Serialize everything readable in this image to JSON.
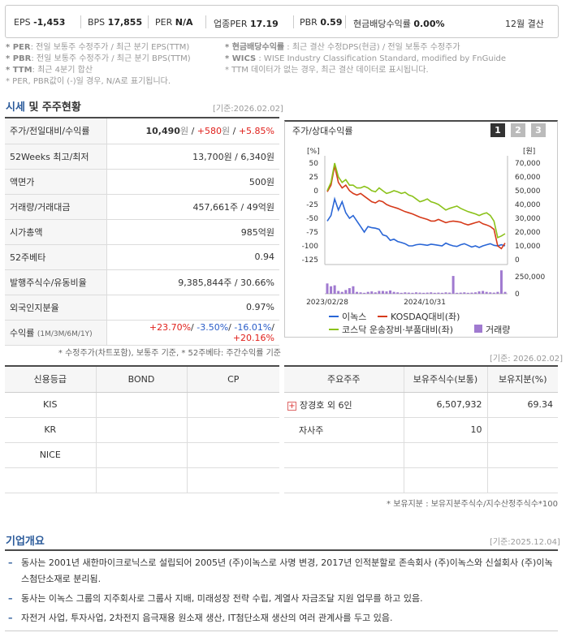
{
  "top_bar": {
    "eps_label": "EPS",
    "eps_value": "-1,453",
    "bps_label": "BPS",
    "bps_value": "17,855",
    "per_label": "PER",
    "per_value": "N/A",
    "industry_per_label": "업종PER",
    "industry_per_value": "17.19",
    "pbr_label": "PBR",
    "pbr_value": "0.59",
    "dividend_label": "현금배당수익률",
    "dividend_value": "0.00%",
    "settlement": "12월 결산"
  },
  "notes": {
    "left": [
      {
        "key": "* PER",
        "text": ": 전일 보통주 수정주가 / 최근 분기 EPS(TTM)"
      },
      {
        "key": "* PBR",
        "text": ": 전일 보통주 수정주가 / 최근 분기 BPS(TTM)"
      },
      {
        "key": "* TTM",
        "text": ": 최근 4분기 합산"
      },
      {
        "key": "",
        "text": "* PER, PBR값이 (-)일 경우, N/A로 표기됩니다."
      }
    ],
    "right": [
      {
        "key": "* 현금배당수익률",
        "text": " : 최근 결산 수정DPS(현금) / 전일 보통주 수정주가"
      },
      {
        "key": "* WICS",
        "text": " : WISE Industry Classification Standard, modified by FnGuide"
      },
      {
        "key": "",
        "text": "* TTM 데이터가 없는 경우, 최근 결산 데이터로 표시됩니다."
      }
    ]
  },
  "market_section": {
    "title_main": "시세",
    "title_rest": " 및 주주현황",
    "base_date": "[기준:2026.02.02]",
    "rows": [
      {
        "label": "주가/전일대비/수익률",
        "value": "10,490",
        "unit": "원",
        "change": "+580",
        "change_unit": "원",
        "pct": "+5.85%"
      },
      {
        "label": "52Weeks 최고/최저",
        "value": "13,700원 / 6,340원"
      },
      {
        "label": "액면가",
        "value": "500원"
      },
      {
        "label": "거래량/거래대금",
        "value": "457,661주 / 49억원"
      },
      {
        "label": "시가총액",
        "value": "985억원"
      },
      {
        "label": "52주베타",
        "value": "0.94"
      },
      {
        "label": "발행주식수/유동비율",
        "value": "9,385,844주 / 30.66%"
      },
      {
        "label": "외국인지분율",
        "value": "0.97%"
      },
      {
        "label": "수익률",
        "sublabel": "(1M/3M/6M/1Y)",
        "r1": "+23.70%",
        "r2": "-3.50%",
        "r3": "-16.01%",
        "r4": "+20.16%"
      }
    ],
    "footnote": "* 수정주가(차트포함), 보통주 기준, * 52주베타: 주간수익률 기준"
  },
  "chart_panel": {
    "title": "주가/상대수익률",
    "buttons": [
      "1",
      "2",
      "3"
    ],
    "left_unit": "[%]",
    "right_unit": "[원]",
    "left_ticks": [
      "50",
      "25",
      "0",
      "-25",
      "-50",
      "-75",
      "-100",
      "-125"
    ],
    "right_ticks": [
      "70,000",
      "60,000",
      "50,000",
      "40,000",
      "30,000",
      "20,000",
      "10,000",
      "0"
    ],
    "vol_ticks": [
      "250,000",
      "0"
    ],
    "x_labels": [
      "2023/02/28",
      "2024/10/31"
    ],
    "legend": [
      "이녹스",
      "KOSDAQ대비(좌)",
      "코스닥 운송장비·부품대비(좌)",
      "거래량"
    ]
  },
  "chart_data": {
    "type": "line",
    "x_labels": [
      "2023/02/28",
      "2024/10/31"
    ],
    "ylim_left": [
      -125,
      50
    ],
    "ylim_right": [
      0,
      70000
    ],
    "series": [
      {
        "name": "이녹스",
        "axis": "left",
        "color": "#2a66d6",
        "values": [
          -55,
          -45,
          -15,
          -35,
          -20,
          -40,
          -50,
          -45,
          -55,
          -65,
          -75,
          -65,
          -67,
          -68,
          -70,
          -80,
          -82,
          -90,
          -88,
          -92,
          -94,
          -96,
          -100,
          -100,
          -98,
          -97,
          -98,
          -99,
          -97,
          -98,
          -99,
          -100,
          -95,
          -98,
          -100,
          -101,
          -98,
          -96,
          -99,
          -102,
          -100,
          -103,
          -100,
          -98,
          -96,
          -99,
          -100,
          -98,
          -100
        ]
      },
      {
        "name": "KOSDAQ대비(좌)",
        "axis": "left",
        "color": "#d63a1a",
        "values": [
          -2,
          10,
          45,
          15,
          5,
          10,
          0,
          -5,
          -8,
          -5,
          -10,
          -15,
          -20,
          -22,
          -18,
          -20,
          -25,
          -28,
          -30,
          -32,
          -35,
          -38,
          -40,
          -42,
          -45,
          -48,
          -50,
          -52,
          -55,
          -55,
          -52,
          -55,
          -58,
          -56,
          -55,
          -56,
          -57,
          -60,
          -62,
          -60,
          -58,
          -56,
          -60,
          -62,
          -65,
          -70,
          -100,
          -105,
          -95
        ]
      },
      {
        "name": "코스닥 운송장비·부품대비(좌)",
        "axis": "left",
        "color": "#8bc21a",
        "values": [
          0,
          15,
          50,
          25,
          15,
          20,
          10,
          10,
          5,
          5,
          8,
          5,
          0,
          -2,
          5,
          0,
          -5,
          -3,
          0,
          -2,
          -5,
          -3,
          -8,
          -10,
          -15,
          -20,
          -18,
          -15,
          -20,
          -22,
          -25,
          -30,
          -35,
          -32,
          -30,
          -28,
          -32,
          -35,
          -38,
          -40,
          -42,
          -45,
          -42,
          -40,
          -45,
          -55,
          -85,
          -82,
          -78
        ]
      },
      {
        "name": "거래량",
        "axis": "volume",
        "color": "#a07ad0",
        "values": [
          110000,
          80000,
          90000,
          30000,
          20000,
          40000,
          60000,
          80000,
          20000,
          15000,
          10000,
          20000,
          25000,
          15000,
          30000,
          30000,
          25000,
          35000,
          20000,
          15000,
          10000,
          15000,
          12000,
          10000,
          15000,
          12000,
          10000,
          12000,
          15000,
          10000,
          12000,
          10000,
          15000,
          12000,
          190000,
          10000,
          12000,
          15000,
          10000,
          12000,
          15000,
          25000,
          30000,
          20000,
          15000,
          12000,
          20000,
          250000,
          20000
        ]
      }
    ]
  },
  "credit_table": {
    "headers": [
      "신용등급",
      "BOND",
      "CP"
    ],
    "rows": [
      [
        "KIS",
        "",
        ""
      ],
      [
        "KR",
        "",
        ""
      ],
      [
        "NICE",
        "",
        ""
      ],
      [
        "",
        "",
        ""
      ]
    ]
  },
  "holder_table": {
    "base_date": "[기준: 2026.02.02]",
    "headers": [
      "주요주주",
      "보유주식수(보통)",
      "보유지분(%)"
    ],
    "rows": [
      {
        "name": "장경호 외 6인",
        "shares": "6,507,932",
        "pct": "69.34",
        "expand": "+"
      },
      {
        "name": "자사주",
        "shares": "10",
        "pct": ""
      },
      {
        "name": "",
        "shares": "",
        "pct": ""
      },
      {
        "name": "",
        "shares": "",
        "pct": ""
      }
    ],
    "footnote": "* 보유지분 : 보유지분주식수/지수산정주식수*100"
  },
  "company_section": {
    "title": "기업개요",
    "base_date": "[기준:2025.12.04]",
    "lines": [
      "동사는 2001년 새한마이크로닉스로 설립되어 2005년 (주)이녹스로 사명 변경, 2017년 인적분할로 존속회사 (주)이녹스와 신설회사 (주)이녹스첨단소재로 분리됨.",
      "동사는 이녹스 그룹의 지주회사로 그룹사 지배, 미래성장 전략 수립, 계열사 자금조달 지원 업무를 하고 있음.",
      "자전거 사업, 투자사업, 2차전지 음극재용 원소재 생산, IT첨단소재 생산의 여러 관계사를 두고 있음."
    ]
  }
}
